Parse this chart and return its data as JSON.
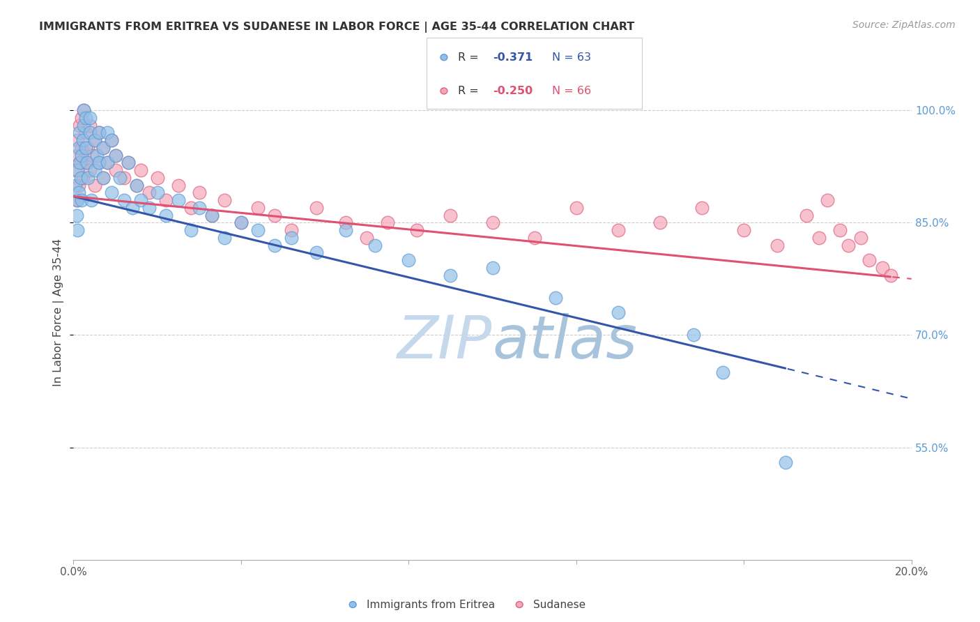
{
  "title": "IMMIGRANTS FROM ERITREA VS SUDANESE IN LABOR FORCE | AGE 35-44 CORRELATION CHART",
  "source": "Source: ZipAtlas.com",
  "ylabel": "In Labor Force | Age 35-44",
  "eritrea_color": "#92C0E8",
  "eritrea_edge_color": "#5B9BD5",
  "sudanese_color": "#F4A7B9",
  "sudanese_edge_color": "#E06080",
  "trendline_eritrea_color": "#3355AA",
  "trendline_sudanese_color": "#E05070",
  "background_color": "#FFFFFF",
  "xlim": [
    0.0,
    0.2
  ],
  "ylim": [
    0.4,
    1.06
  ],
  "yticks": [
    0.55,
    0.7,
    0.85,
    1.0
  ],
  "ytick_labels": [
    "55.0%",
    "70.0%",
    "85.0%",
    "100.0%"
  ],
  "eritrea_x": [
    0.0005,
    0.0007,
    0.0009,
    0.001,
    0.001,
    0.0012,
    0.0013,
    0.0015,
    0.0015,
    0.0018,
    0.002,
    0.002,
    0.0022,
    0.0025,
    0.0025,
    0.003,
    0.003,
    0.0032,
    0.0035,
    0.004,
    0.004,
    0.0042,
    0.005,
    0.005,
    0.0055,
    0.006,
    0.006,
    0.007,
    0.007,
    0.008,
    0.008,
    0.009,
    0.009,
    0.01,
    0.011,
    0.012,
    0.013,
    0.014,
    0.015,
    0.016,
    0.018,
    0.02,
    0.022,
    0.025,
    0.028,
    0.03,
    0.033,
    0.036,
    0.04,
    0.044,
    0.048,
    0.052,
    0.058,
    0.065,
    0.072,
    0.08,
    0.09,
    0.1,
    0.115,
    0.13,
    0.148,
    0.155,
    0.17
  ],
  "eritrea_y": [
    0.9,
    0.86,
    0.84,
    0.88,
    0.92,
    0.95,
    0.89,
    0.93,
    0.97,
    0.91,
    0.88,
    0.94,
    0.96,
    0.98,
    1.0,
    0.95,
    0.99,
    0.93,
    0.91,
    0.97,
    0.99,
    0.88,
    0.96,
    0.92,
    0.94,
    0.97,
    0.93,
    0.95,
    0.91,
    0.97,
    0.93,
    0.96,
    0.89,
    0.94,
    0.91,
    0.88,
    0.93,
    0.87,
    0.9,
    0.88,
    0.87,
    0.89,
    0.86,
    0.88,
    0.84,
    0.87,
    0.86,
    0.83,
    0.85,
    0.84,
    0.82,
    0.83,
    0.81,
    0.84,
    0.82,
    0.8,
    0.78,
    0.79,
    0.75,
    0.73,
    0.7,
    0.65,
    0.53
  ],
  "sudanese_x": [
    0.0005,
    0.0008,
    0.001,
    0.001,
    0.0012,
    0.0015,
    0.0018,
    0.002,
    0.002,
    0.0022,
    0.0025,
    0.003,
    0.003,
    0.0035,
    0.004,
    0.004,
    0.0045,
    0.005,
    0.005,
    0.006,
    0.006,
    0.007,
    0.007,
    0.008,
    0.009,
    0.01,
    0.01,
    0.012,
    0.013,
    0.015,
    0.016,
    0.018,
    0.02,
    0.022,
    0.025,
    0.028,
    0.03,
    0.033,
    0.036,
    0.04,
    0.044,
    0.048,
    0.052,
    0.058,
    0.065,
    0.07,
    0.075,
    0.082,
    0.09,
    0.1,
    0.11,
    0.12,
    0.13,
    0.14,
    0.15,
    0.16,
    0.168,
    0.175,
    0.178,
    0.18,
    0.183,
    0.185,
    0.188,
    0.19,
    0.193,
    0.195
  ],
  "sudanese_y": [
    0.92,
    0.88,
    0.94,
    0.96,
    0.9,
    0.98,
    0.93,
    0.95,
    0.99,
    0.91,
    1.0,
    0.97,
    0.93,
    0.95,
    0.98,
    0.92,
    0.94,
    0.96,
    0.9,
    0.97,
    0.93,
    0.95,
    0.91,
    0.93,
    0.96,
    0.92,
    0.94,
    0.91,
    0.93,
    0.9,
    0.92,
    0.89,
    0.91,
    0.88,
    0.9,
    0.87,
    0.89,
    0.86,
    0.88,
    0.85,
    0.87,
    0.86,
    0.84,
    0.87,
    0.85,
    0.83,
    0.85,
    0.84,
    0.86,
    0.85,
    0.83,
    0.87,
    0.84,
    0.85,
    0.87,
    0.84,
    0.82,
    0.86,
    0.83,
    0.88,
    0.84,
    0.82,
    0.83,
    0.8,
    0.79,
    0.78
  ]
}
